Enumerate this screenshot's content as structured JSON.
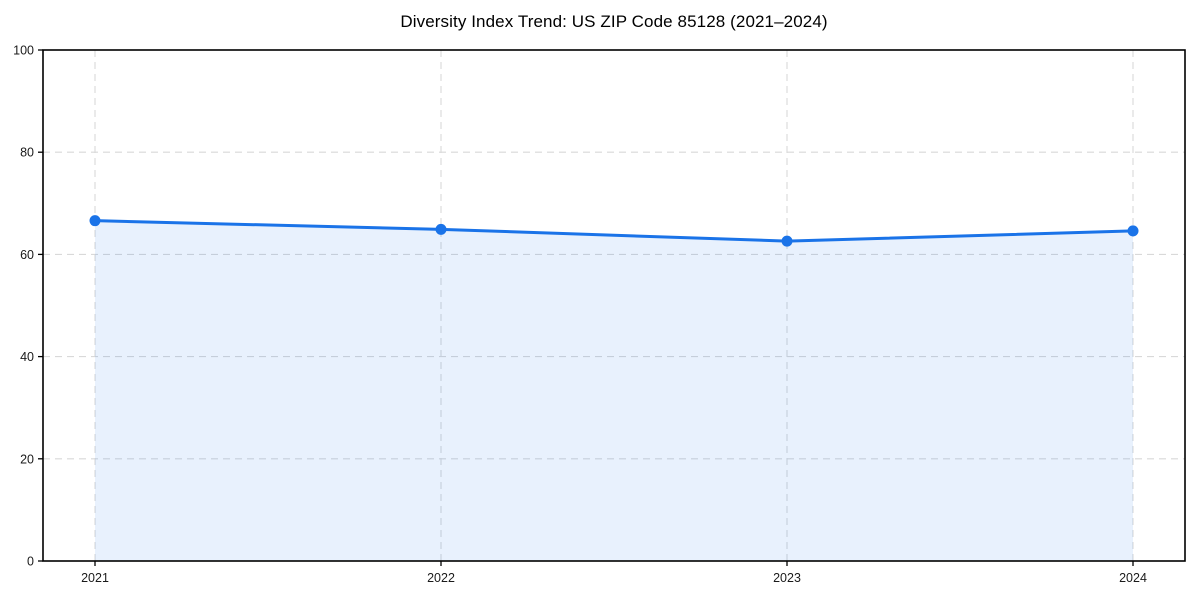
{
  "chart_data": {
    "type": "area",
    "title": "Diversity Index Trend: US ZIP Code 85128 (2021–2024)",
    "categories": [
      "2021",
      "2022",
      "2023",
      "2024"
    ],
    "series": [
      {
        "name": "Diversity Index",
        "values": [
          66.6,
          64.9,
          62.6,
          64.6
        ]
      }
    ],
    "xlabel": "",
    "ylabel": "",
    "ylim": [
      0,
      100
    ],
    "yticks": [
      0,
      20,
      40,
      60,
      80,
      100
    ],
    "grid": "both-dashed",
    "legend": "none",
    "marker": "circle",
    "colors": {
      "line": "#1a73e8",
      "marker": "#1a73e8",
      "fill": "rgba(26,115,232,0.10)",
      "grid": "#d9d9d9",
      "frame": "#000000",
      "tick_text": "#1a1a1a",
      "title_text": "#000000",
      "background": "#ffffff"
    }
  }
}
